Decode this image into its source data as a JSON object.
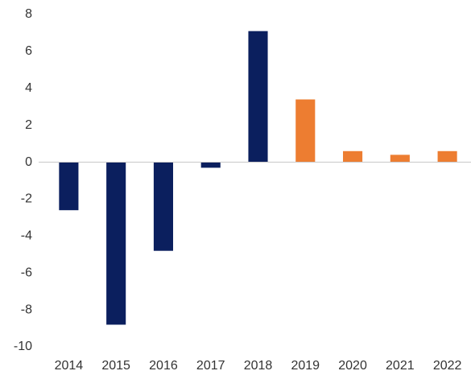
{
  "chart_data": {
    "type": "bar",
    "categories": [
      "2014",
      "2015",
      "2016",
      "2017",
      "2018",
      "2019",
      "2020",
      "2021",
      "2022"
    ],
    "values": [
      -2.6,
      -8.8,
      -4.8,
      -0.3,
      7.1,
      3.4,
      0.6,
      0.4,
      0.6
    ],
    "colors": [
      "#0b1f5e",
      "#0b1f5e",
      "#0b1f5e",
      "#0b1f5e",
      "#0b1f5e",
      "#ed7d31",
      "#ed7d31",
      "#ed7d31",
      "#ed7d31"
    ],
    "ylim": [
      -10,
      8
    ],
    "yticks": [
      -10,
      -8,
      -6,
      -4,
      -2,
      0,
      2,
      4,
      6,
      8
    ],
    "grid": false
  }
}
